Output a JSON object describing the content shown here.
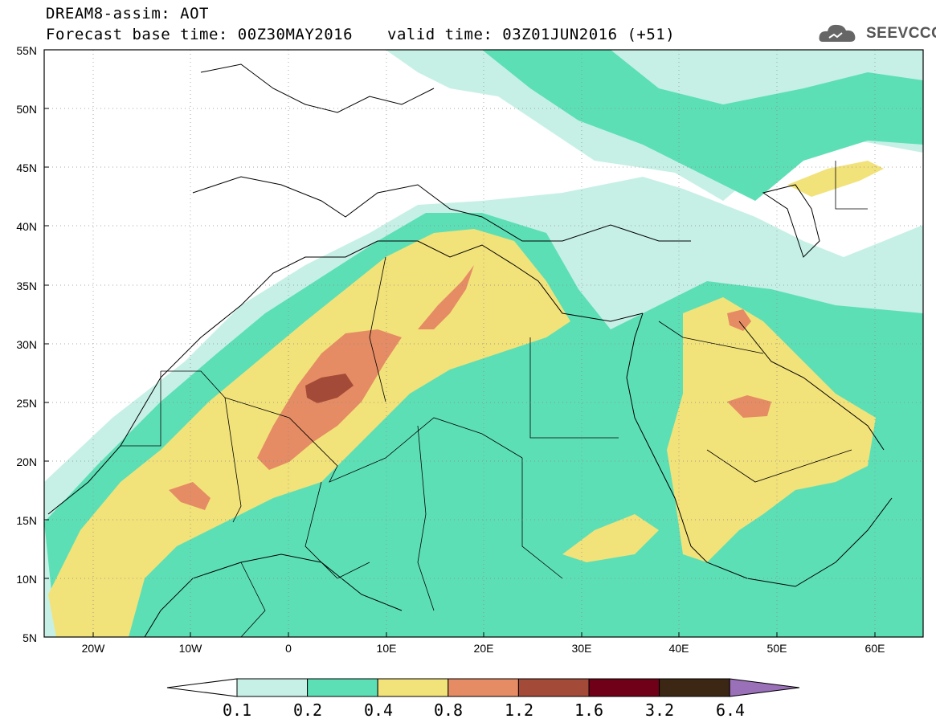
{
  "title": {
    "line1": "DREAM8-assim: AOT",
    "line2": "Forecast base time: 00Z30MAY2016",
    "valid": "valid time: 03Z01JUN2016 (+51)"
  },
  "logo": {
    "text": "SEEVCCC",
    "icon": "cloud-icon"
  },
  "axes": {
    "lat_labels": [
      "55N",
      "50N",
      "45N",
      "40N",
      "35N",
      "30N",
      "25N",
      "20N",
      "15N",
      "10N",
      "5N"
    ],
    "lon_labels": [
      "20W",
      "10W",
      "0",
      "10E",
      "20E",
      "30E",
      "40E",
      "50E",
      "60E"
    ]
  },
  "colorbar": {
    "labels": [
      "0.1",
      "0.2",
      "0.4",
      "0.8",
      "1.2",
      "1.6",
      "3.2",
      "6.4"
    ],
    "colors": [
      "#ffffff",
      "#c6f0e6",
      "#5ddfb6",
      "#f2e27a",
      "#e58c64",
      "#a44a38",
      "#700018",
      "#3b2713",
      "#9a70b8"
    ]
  },
  "colors": {
    "c01": "#c6f0e6",
    "c02": "#5ddfb6",
    "c04": "#f2e27a",
    "c08": "#e58c64",
    "c12": "#a44a38"
  }
}
